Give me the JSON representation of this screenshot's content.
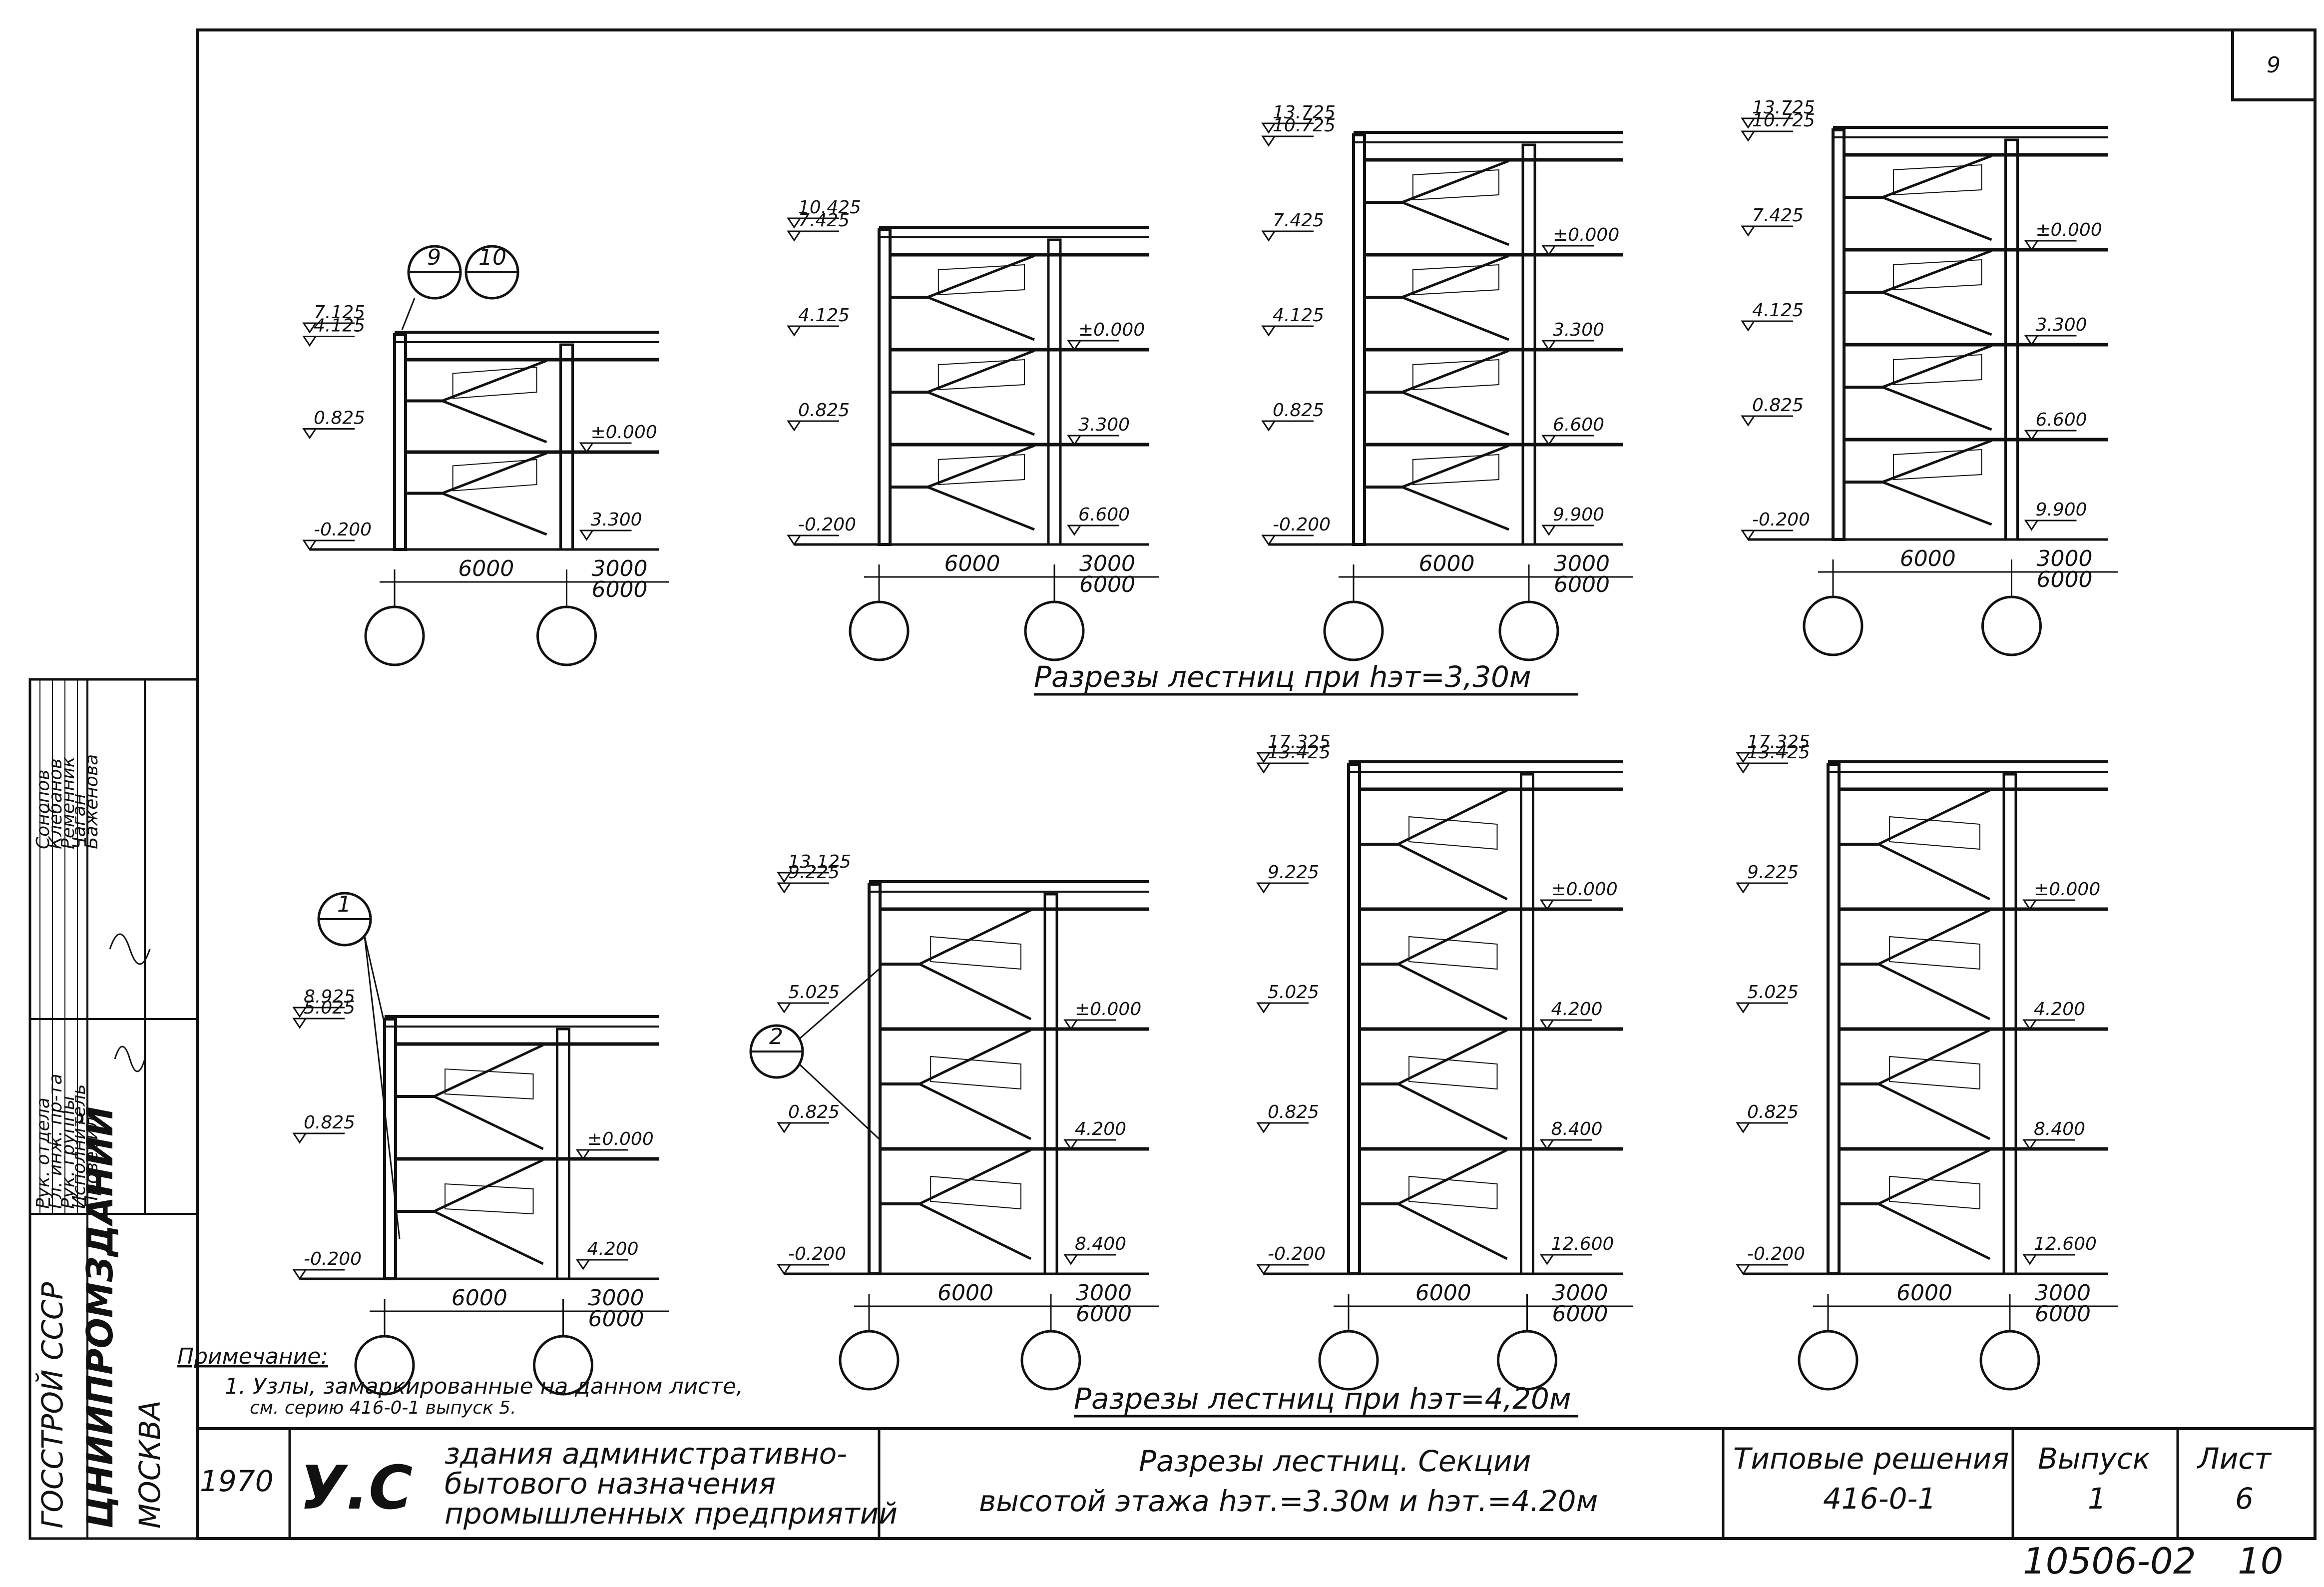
{
  "sheet": {
    "corner_number": "9",
    "document_code": "10506-02",
    "page_number": "10"
  },
  "captions": {
    "top": "Разрезы лестниц при hэт=3,30м",
    "bottom": "Разрезы лестниц при hэт=4,20м"
  },
  "note": {
    "title": "Примечание:",
    "line1": "1. Узлы, замаркированные на данном листе,",
    "line2": "см. серию 416-0-1 выпуск 5."
  },
  "section_marks": {
    "top_a": "9",
    "top_b": "10",
    "bottom_a": "1",
    "bottom_b": "2"
  },
  "top_sections": [
    {
      "levels": [
        "7.125",
        "4.125",
        "0.825",
        "-0.200"
      ],
      "right_levels": [
        "3.300",
        "±0.000"
      ],
      "dims": [
        "6000",
        "3000",
        "6000"
      ]
    },
    {
      "levels": [
        "10.425",
        "7.425",
        "4.125",
        "0.825",
        "-0.200"
      ],
      "right_levels": [
        "6.600",
        "3.300",
        "±0.000"
      ],
      "dims": [
        "6000",
        "3000",
        "6000"
      ]
    },
    {
      "levels": [
        "13.725",
        "10.725",
        "7.425",
        "4.125",
        "0.825",
        "-0.200"
      ],
      "right_levels": [
        "9.900",
        "6.600",
        "3.300",
        "±0.000"
      ],
      "dims": [
        "6000",
        "3000",
        "6000"
      ]
    },
    {
      "levels": [
        "13.725",
        "10.725",
        "7.425",
        "4.125",
        "0.825",
        "-0.200"
      ],
      "right_levels": [
        "9.900",
        "6.600",
        "3.300",
        "±0.000"
      ],
      "dims": [
        "6000",
        "3000",
        "6000"
      ]
    }
  ],
  "bottom_sections": [
    {
      "levels": [
        "8.925",
        "5.025",
        "0.825",
        "-0.200"
      ],
      "right_levels": [
        "4.200",
        "±0.000"
      ],
      "dims": [
        "6000",
        "3000",
        "6000"
      ]
    },
    {
      "levels": [
        "13.125",
        "9.225",
        "5.025",
        "0.825",
        "-0.200"
      ],
      "right_levels": [
        "8.400",
        "4.200",
        "±0.000"
      ],
      "dims": [
        "6000",
        "3000",
        "6000"
      ]
    },
    {
      "levels": [
        "17.325",
        "13.425",
        "9.225",
        "5.025",
        "0.825",
        "-0.200"
      ],
      "right_levels": [
        "12.600",
        "8.400",
        "4.200",
        "±0.000"
      ],
      "dims": [
        "6000",
        "3000",
        "6000"
      ]
    },
    {
      "levels": [
        "17.325",
        "13.425",
        "9.225",
        "5.025",
        "0.825",
        "-0.200"
      ],
      "right_levels": [
        "12.600",
        "8.400",
        "4.200",
        "±0.000"
      ],
      "dims": [
        "6000",
        "3000",
        "6000"
      ]
    }
  ],
  "stamp": {
    "org1": "ГОССТРОЙ СССР",
    "org2": "ЦНИИПРОМЗДАНИЙ",
    "city": "МОСКВА",
    "roles": [
      "Рук. отдела",
      "Гл. инж. пр-та",
      "Рук. группы",
      "Исполнитель",
      "Проверил"
    ],
    "names": [
      "Сонопов",
      "Клебанов",
      "Ременник",
      "Чаган",
      "Баженова"
    ],
    "year": "1970",
    "logo": "У.С",
    "project": [
      "здания административно-",
      "бытового назначения",
      "промышленных предприятий"
    ],
    "title_line1": "Разрезы лестниц. Секции",
    "title_line2": "высотой этажа hэт.=3.30м и hэт.=4.20м",
    "series_label": "Типовые решения",
    "series_value": "416-0-1",
    "issue_label": "Выпуск",
    "issue_value": "1",
    "sheet_label": "Лист",
    "sheet_value": "6"
  }
}
